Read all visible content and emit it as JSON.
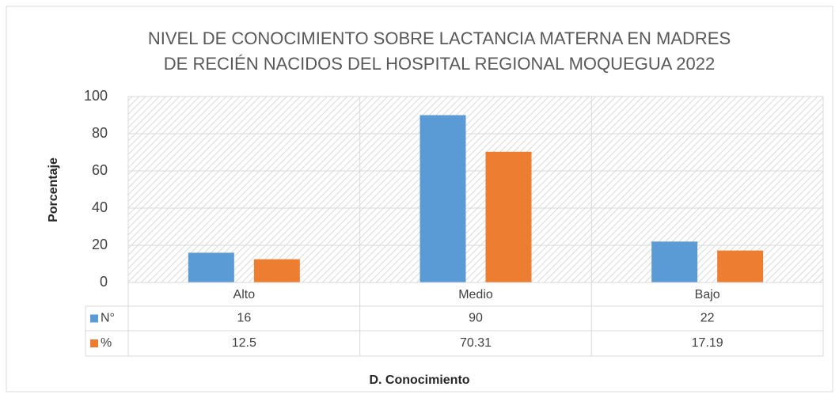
{
  "chart_data": {
    "type": "bar",
    "title": [
      "NIVEL DE CONOCIMIENTO SOBRE LACTANCIA MATERNA EN MADRES",
      "DE RECIÉN NACIDOS DEL HOSPITAL REGIONAL MOQUEGUA  2022"
    ],
    "y_label": "Porcentaje",
    "x_label": "D. Conocimiento",
    "categories": [
      "Alto",
      "Medio",
      "Bajo"
    ],
    "series": [
      {
        "name": "N°",
        "color": "#5b9bd5",
        "values": [
          16,
          90,
          22
        ]
      },
      {
        "name": "%",
        "color": "#ed7d31",
        "values": [
          12.5,
          70.31,
          17.19
        ]
      }
    ],
    "ylim": [
      0,
      100
    ],
    "yticks": [
      0,
      20,
      40,
      60,
      80,
      100
    ],
    "grid": true,
    "data_table": true
  }
}
